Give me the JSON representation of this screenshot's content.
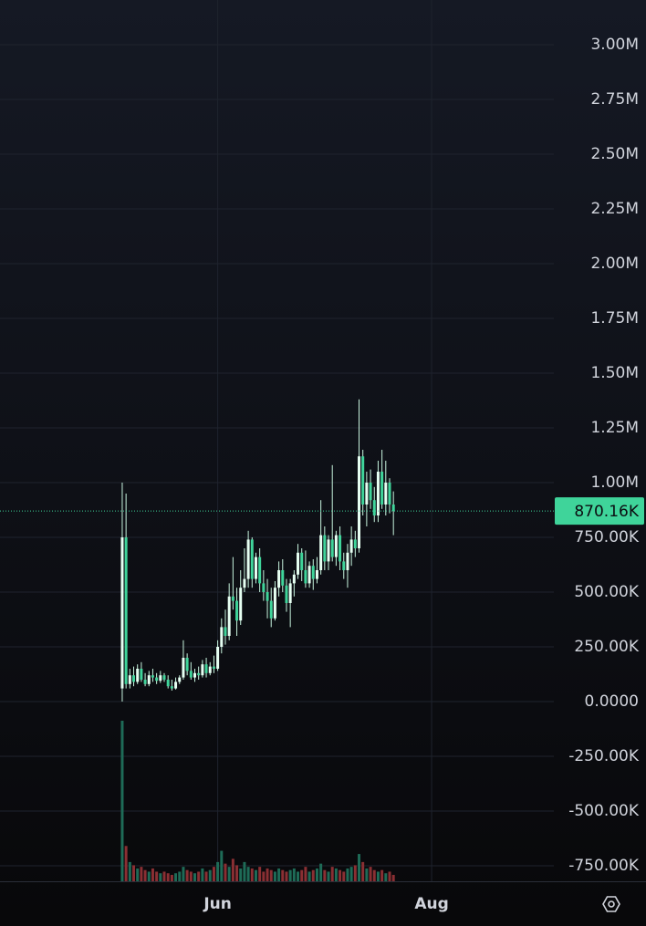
{
  "chart_data": {
    "type": "candlestick",
    "up_color": "#e6fff2",
    "down_color": "#3fd49a",
    "wick_color": "#c8f5df",
    "volume_up_color": "#1e6b57",
    "volume_down_color": "#8a2f33",
    "open": [
      60000,
      750000,
      80000,
      120000,
      90000,
      150000,
      100000,
      80000,
      120000,
      110000,
      95000,
      120000,
      100000,
      70000,
      60000,
      90000,
      110000,
      200000,
      140000,
      110000,
      130000,
      120000,
      170000,
      130000,
      160000,
      150000,
      250000,
      340000,
      300000,
      480000,
      460000,
      370000,
      520000,
      560000,
      740000,
      560000,
      660000,
      540000,
      500000,
      460000,
      380000,
      520000,
      600000,
      530000,
      450000,
      540000,
      580000,
      680000,
      600000,
      540000,
      620000,
      560000,
      600000,
      760000,
      640000,
      740000,
      660000,
      760000,
      640000,
      600000,
      680000,
      740000,
      700000,
      1120000,
      900000,
      1000000,
      920000,
      850000,
      1050000,
      900000,
      1000000,
      900000
    ],
    "high": [
      1000000,
      950000,
      150000,
      160000,
      170000,
      180000,
      130000,
      140000,
      150000,
      130000,
      140000,
      130000,
      120000,
      100000,
      110000,
      120000,
      280000,
      220000,
      180000,
      150000,
      160000,
      190000,
      200000,
      180000,
      210000,
      280000,
      380000,
      420000,
      540000,
      660000,
      520000,
      600000,
      700000,
      780000,
      750000,
      680000,
      700000,
      600000,
      560000,
      520000,
      550000,
      640000,
      650000,
      560000,
      560000,
      600000,
      720000,
      700000,
      690000,
      640000,
      650000,
      660000,
      920000,
      800000,
      760000,
      1080000,
      780000,
      800000,
      680000,
      720000,
      800000,
      780000,
      1380000,
      1150000,
      1050000,
      1060000,
      980000,
      1100000,
      1150000,
      1100000,
      1020000,
      960000
    ],
    "low": [
      0,
      60000,
      60000,
      70000,
      80000,
      90000,
      70000,
      70000,
      90000,
      80000,
      85000,
      90000,
      60000,
      50000,
      55000,
      80000,
      100000,
      120000,
      100000,
      90000,
      100000,
      110000,
      110000,
      120000,
      130000,
      140000,
      220000,
      260000,
      280000,
      420000,
      300000,
      350000,
      500000,
      520000,
      520000,
      540000,
      500000,
      460000,
      380000,
      340000,
      370000,
      480000,
      500000,
      410000,
      340000,
      480000,
      560000,
      550000,
      520000,
      520000,
      510000,
      540000,
      580000,
      600000,
      600000,
      640000,
      620000,
      600000,
      560000,
      520000,
      620000,
      660000,
      680000,
      850000,
      800000,
      880000,
      820000,
      820000,
      880000,
      850000,
      860000,
      760000
    ],
    "close": [
      750000,
      80000,
      120000,
      90000,
      150000,
      100000,
      80000,
      120000,
      110000,
      95000,
      120000,
      100000,
      70000,
      60000,
      90000,
      110000,
      200000,
      140000,
      110000,
      130000,
      120000,
      170000,
      130000,
      160000,
      150000,
      250000,
      340000,
      300000,
      480000,
      460000,
      370000,
      520000,
      560000,
      740000,
      560000,
      660000,
      540000,
      500000,
      460000,
      380000,
      520000,
      600000,
      530000,
      450000,
      540000,
      580000,
      680000,
      600000,
      540000,
      620000,
      560000,
      600000,
      760000,
      640000,
      740000,
      660000,
      760000,
      640000,
      600000,
      680000,
      740000,
      700000,
      1120000,
      900000,
      1000000,
      920000,
      850000,
      1050000,
      900000,
      1000000,
      900000,
      870160
    ],
    "volume": [
      100,
      22,
      12,
      10,
      8,
      9,
      7,
      6,
      8,
      6,
      5,
      6,
      5,
      4,
      5,
      6,
      9,
      7,
      6,
      5,
      6,
      8,
      6,
      7,
      9,
      12,
      19,
      11,
      9,
      14,
      10,
      8,
      12,
      9,
      8,
      7,
      9,
      6,
      8,
      7,
      6,
      8,
      7,
      6,
      7,
      8,
      6,
      7,
      9,
      6,
      7,
      8,
      11,
      7,
      6,
      9,
      8,
      7,
      6,
      8,
      9,
      10,
      17,
      12,
      8,
      9,
      7,
      6,
      7,
      5,
      6,
      4
    ],
    "ylim": [
      -820833,
      3204167
    ],
    "yticks": [
      {
        "value": 3000000,
        "label": "3.00M"
      },
      {
        "value": 2750000,
        "label": "2.75M"
      },
      {
        "value": 2500000,
        "label": "2.50M"
      },
      {
        "value": 2250000,
        "label": "2.25M"
      },
      {
        "value": 2000000,
        "label": "2.00M"
      },
      {
        "value": 1750000,
        "label": "1.75M"
      },
      {
        "value": 1500000,
        "label": "1.50M"
      },
      {
        "value": 1250000,
        "label": "1.25M"
      },
      {
        "value": 1000000,
        "label": "1.00M"
      },
      {
        "value": 750000,
        "label": "750.00K"
      },
      {
        "value": 500000,
        "label": "500.00K"
      },
      {
        "value": 250000,
        "label": "250.00K"
      },
      {
        "value": 0,
        "label": "0.0000"
      },
      {
        "value": -250000,
        "label": "-250.00K"
      },
      {
        "value": -500000,
        "label": "-500.00K"
      },
      {
        "value": -750000,
        "label": "-750.00K"
      }
    ],
    "xlim": [
      -32,
      113
    ],
    "xticks": [
      {
        "value": 25,
        "label": "Jun"
      },
      {
        "value": 81,
        "label": "Aug"
      }
    ],
    "grid": true,
    "last_price": 870160,
    "last_price_label": "870.16K",
    "last_price_color": "#3fd49a"
  }
}
